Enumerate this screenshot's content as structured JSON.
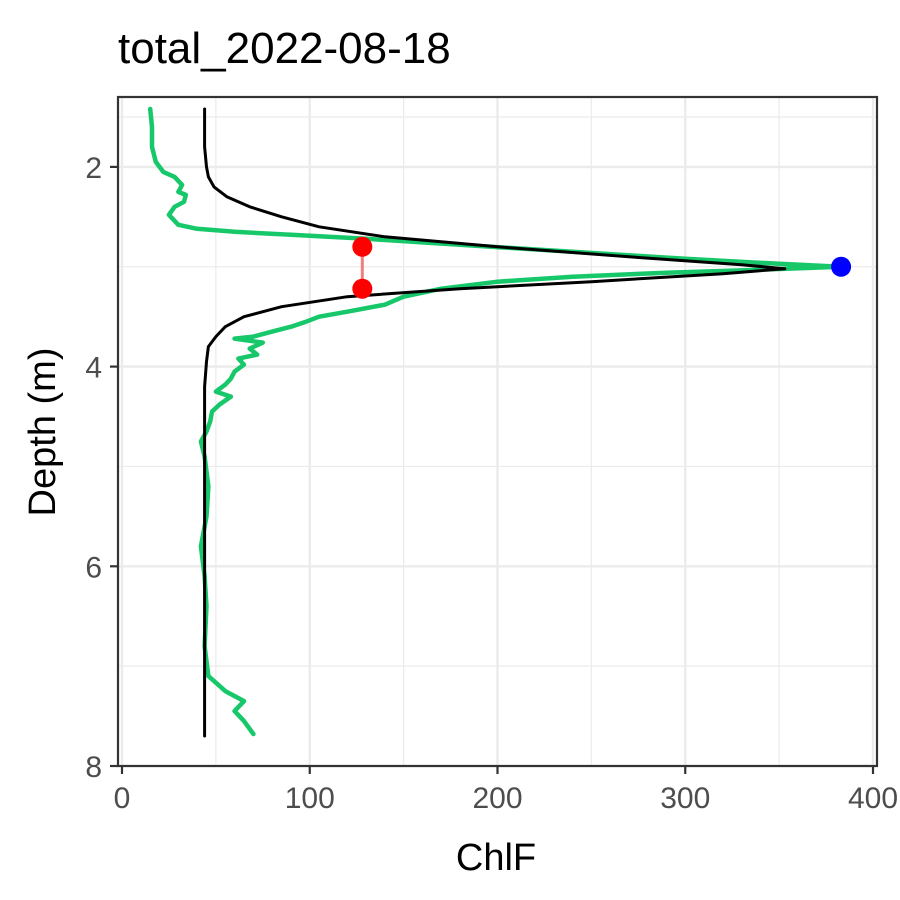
{
  "chart_data": {
    "type": "line",
    "title": "total_2022-08-18",
    "xlabel": "ChlF",
    "ylabel": "Depth (m)",
    "xlim": [
      0,
      400
    ],
    "ylim": [
      8,
      1.3
    ],
    "y_reversed": true,
    "grid": true,
    "x_ticks": [
      0,
      100,
      200,
      300,
      400
    ],
    "x_tick_labels": [
      "0",
      "100",
      "200",
      "300",
      "400"
    ],
    "y_ticks": [
      2,
      4,
      6,
      8
    ],
    "y_tick_labels": [
      "2",
      "4",
      "6",
      "8"
    ],
    "colors": {
      "observed": "#17c86b",
      "fitted": "#000000",
      "peak_point": "#0000ff",
      "width_points": "#ff0000",
      "width_segment": "#f08080",
      "panel_border": "#333333",
      "grid": "#ebebeb"
    },
    "series": [
      {
        "color": "#17c86b",
        "points": [
          [
            15,
            1.42
          ],
          [
            16,
            1.6
          ],
          [
            16,
            1.8
          ],
          [
            18,
            1.95
          ],
          [
            22,
            2.05
          ],
          [
            28,
            2.1
          ],
          [
            32,
            2.18
          ],
          [
            30,
            2.25
          ],
          [
            34,
            2.28
          ],
          [
            33,
            2.35
          ],
          [
            28,
            2.4
          ],
          [
            25,
            2.48
          ],
          [
            30,
            2.58
          ],
          [
            40,
            2.62
          ],
          [
            60,
            2.65
          ],
          [
            90,
            2.68
          ],
          [
            130,
            2.72
          ],
          [
            180,
            2.78
          ],
          [
            240,
            2.85
          ],
          [
            300,
            2.92
          ],
          [
            350,
            2.97
          ],
          [
            383,
            3.0
          ],
          [
            340,
            3.03
          ],
          [
            290,
            3.06
          ],
          [
            240,
            3.1
          ],
          [
            200,
            3.15
          ],
          [
            170,
            3.22
          ],
          [
            150,
            3.3
          ],
          [
            140,
            3.38
          ],
          [
            120,
            3.45
          ],
          [
            105,
            3.5
          ],
          [
            98,
            3.55
          ],
          [
            90,
            3.6
          ],
          [
            80,
            3.65
          ],
          [
            70,
            3.7
          ],
          [
            60,
            3.72
          ],
          [
            75,
            3.76
          ],
          [
            68,
            3.82
          ],
          [
            72,
            3.88
          ],
          [
            62,
            3.92
          ],
          [
            65,
            3.98
          ],
          [
            60,
            4.05
          ],
          [
            58,
            4.12
          ],
          [
            55,
            4.18
          ],
          [
            50,
            4.25
          ],
          [
            58,
            4.3
          ],
          [
            52,
            4.38
          ],
          [
            48,
            4.45
          ],
          [
            47,
            4.55
          ],
          [
            45,
            4.65
          ],
          [
            42,
            4.75
          ],
          [
            44,
            4.9
          ],
          [
            46,
            5.2
          ],
          [
            45,
            5.5
          ],
          [
            42,
            5.8
          ],
          [
            44,
            6.1
          ],
          [
            45,
            6.4
          ],
          [
            44,
            6.8
          ],
          [
            46,
            7.1
          ],
          [
            55,
            7.25
          ],
          [
            65,
            7.35
          ],
          [
            60,
            7.45
          ],
          [
            65,
            7.55
          ],
          [
            70,
            7.68
          ]
        ]
      },
      {
        "color": "#000000",
        "points": [
          [
            44,
            1.42
          ],
          [
            44,
            1.8
          ],
          [
            45,
            2.0
          ],
          [
            46,
            2.1
          ],
          [
            49,
            2.2
          ],
          [
            56,
            2.3
          ],
          [
            68,
            2.4
          ],
          [
            85,
            2.5
          ],
          [
            105,
            2.6
          ],
          [
            140,
            2.7
          ],
          [
            200,
            2.8
          ],
          [
            270,
            2.9
          ],
          [
            330,
            2.98
          ],
          [
            353,
            3.02
          ],
          [
            320,
            3.07
          ],
          [
            250,
            3.15
          ],
          [
            180,
            3.22
          ],
          [
            120,
            3.3
          ],
          [
            85,
            3.4
          ],
          [
            65,
            3.5
          ],
          [
            55,
            3.6
          ],
          [
            50,
            3.7
          ],
          [
            46,
            3.8
          ],
          [
            45,
            3.95
          ],
          [
            44,
            4.2
          ],
          [
            44,
            5.0
          ],
          [
            44,
            6.0
          ],
          [
            44,
            7.0
          ],
          [
            44,
            7.7
          ]
        ]
      }
    ],
    "peak_point": {
      "x": 383,
      "y": 3.0,
      "color": "#0000ff"
    },
    "width_points": [
      {
        "x": 128,
        "y": 2.8,
        "color": "#ff0000"
      },
      {
        "x": 128,
        "y": 3.22,
        "color": "#ff0000"
      }
    ]
  }
}
